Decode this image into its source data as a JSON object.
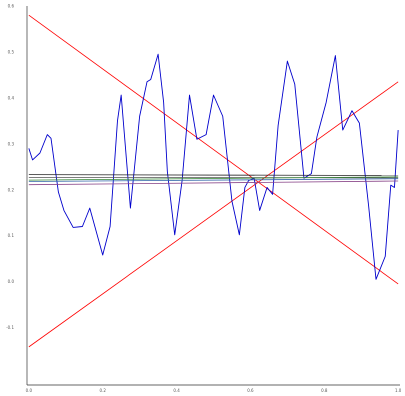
{
  "chart_data": {
    "type": "line",
    "title": "",
    "xlabel": "",
    "ylabel": "",
    "xlim": [
      -0.005,
      1.005
    ],
    "ylim": [
      -0.225,
      0.6
    ],
    "grid": false,
    "x_ticks": [
      "0.0",
      "0.2",
      "0.4",
      "0.6",
      "0.8",
      "1.0"
    ],
    "y_ticks": [
      "-0.1",
      "0.0",
      "0.1",
      "0.2",
      "0.3",
      "0.4",
      "0.5",
      "0.6"
    ],
    "series": [
      {
        "color": "#ff0000",
        "x": [
          0.0,
          1.0
        ],
        "y": [
          0.58,
          -0.005
        ]
      },
      {
        "color": "#ff0000",
        "x": [
          0.0,
          1.0
        ],
        "y": [
          -0.142,
          0.435
        ]
      },
      {
        "color": "#0000cc",
        "x": [
          0.0,
          0.01,
          0.03,
          0.05,
          0.06,
          0.08,
          0.095,
          0.12,
          0.145,
          0.165,
          0.2,
          0.22,
          0.24,
          0.25,
          0.275,
          0.3,
          0.32,
          0.33,
          0.35,
          0.365,
          0.375,
          0.395,
          0.415,
          0.435,
          0.455,
          0.48,
          0.5,
          0.525,
          0.55,
          0.57,
          0.585,
          0.595,
          0.61,
          0.625,
          0.645,
          0.66,
          0.675,
          0.7,
          0.72,
          0.745,
          0.765,
          0.78,
          0.805,
          0.83,
          0.85,
          0.875,
          0.895,
          0.92,
          0.94,
          0.965,
          0.98,
          0.99,
          1.0
        ],
        "y": [
          0.29,
          0.265,
          0.28,
          0.32,
          0.312,
          0.195,
          0.155,
          0.118,
          0.12,
          0.16,
          0.058,
          0.12,
          0.35,
          0.406,
          0.16,
          0.36,
          0.435,
          0.44,
          0.495,
          0.39,
          0.24,
          0.102,
          0.22,
          0.406,
          0.31,
          0.32,
          0.406,
          0.36,
          0.175,
          0.102,
          0.205,
          0.22,
          0.225,
          0.155,
          0.205,
          0.19,
          0.34,
          0.48,
          0.43,
          0.225,
          0.235,
          0.315,
          0.39,
          0.492,
          0.33,
          0.372,
          0.345,
          0.165,
          0.005,
          0.055,
          0.21,
          0.205,
          0.33
        ]
      },
      {
        "color": "#222222",
        "x": [
          0.0,
          1.0
        ],
        "y": [
          0.233,
          0.231
        ]
      },
      {
        "color": "#555555",
        "x": [
          0.0,
          1.0
        ],
        "y": [
          0.227,
          0.226
        ]
      },
      {
        "color": "#338833",
        "x": [
          0.0,
          1.0
        ],
        "y": [
          0.221,
          0.228
        ]
      },
      {
        "color": "#884488",
        "x": [
          0.0,
          1.0
        ],
        "y": [
          0.211,
          0.219
        ]
      },
      {
        "color": "#3366aa",
        "x": [
          0.0,
          1.0
        ],
        "y": [
          0.218,
          0.224
        ]
      }
    ]
  }
}
